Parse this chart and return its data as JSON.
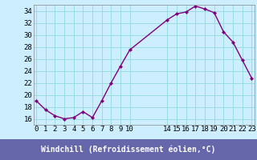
{
  "x": [
    0,
    1,
    2,
    3,
    4,
    5,
    6,
    7,
    8,
    9,
    10,
    14,
    15,
    16,
    17,
    18,
    19,
    20,
    21,
    22,
    23
  ],
  "y": [
    19.0,
    17.5,
    16.5,
    16.0,
    16.2,
    17.2,
    16.2,
    19.0,
    22.0,
    24.8,
    27.5,
    32.5,
    33.5,
    33.8,
    34.8,
    34.3,
    33.7,
    30.5,
    28.8,
    25.8,
    22.8
  ],
  "line_color": "#800080",
  "marker_color": "#800080",
  "bg_color": "#cceeff",
  "grid_color": "#99dddd",
  "xlabel": "Windchill (Refroidissement éolien,°C)",
  "xlabel_bg": "#6666aa",
  "xlabel_color": "#ffffff",
  "ylim": [
    15,
    35
  ],
  "yticks": [
    16,
    18,
    20,
    22,
    24,
    26,
    28,
    30,
    32,
    34
  ],
  "xticks": [
    0,
    1,
    2,
    3,
    4,
    5,
    6,
    7,
    8,
    9,
    10,
    14,
    15,
    16,
    17,
    18,
    19,
    20,
    21,
    22,
    23
  ],
  "xlim": [
    -0.3,
    23.3
  ],
  "tick_fontsize": 6.5,
  "xlabel_fontsize": 7
}
